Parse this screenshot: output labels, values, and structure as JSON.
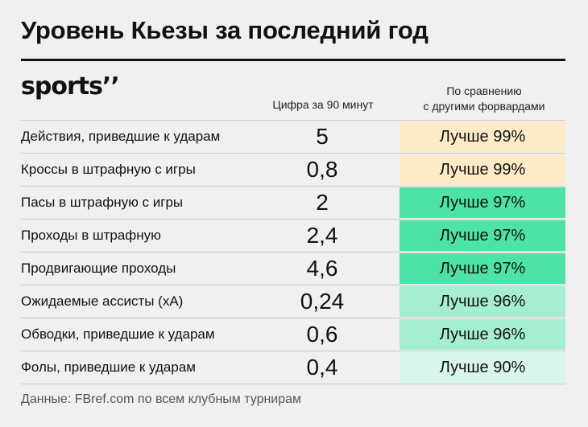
{
  "title": "Уровень Кьезы за последний год",
  "logo": "sports’’",
  "columns": {
    "value_header": "Цифра за 90 минут",
    "compare_header_line1": "По сравнению",
    "compare_header_line2": "с другими форвардами"
  },
  "colors": {
    "top": "#fdebc8",
    "green_strong": "#4ee3a6",
    "green_mid": "#a6eed2",
    "green_light": "#d8f7ea"
  },
  "rows": [
    {
      "label": "Действия, приведшие к ударам",
      "value": "5",
      "compare": "Лучше 99%",
      "color": "#fdebc8"
    },
    {
      "label": "Кроссы в штрафную с игры",
      "value": "0,8",
      "compare": "Лучше 99%",
      "color": "#fdebc8"
    },
    {
      "label": "Пасы в штрафную с игры",
      "value": "2",
      "compare": "Лучше 97%",
      "color": "#4ee3a6"
    },
    {
      "label": "Проходы в штрафную",
      "value": "2,4",
      "compare": "Лучше 97%",
      "color": "#4ee3a6"
    },
    {
      "label": "Продвигающие проходы",
      "value": "4,6",
      "compare": "Лучше 97%",
      "color": "#4ee3a6"
    },
    {
      "label": "Ожидаемые ассисты (xA)",
      "value": "0,24",
      "compare": "Лучше 96%",
      "color": "#a6eed2"
    },
    {
      "label": "Обводки, приведшие к ударам",
      "value": "0,6",
      "compare": "Лучше 96%",
      "color": "#a6eed2"
    },
    {
      "label": "Фолы, приведшие к ударам",
      "value": "0,4",
      "compare": "Лучше 90%",
      "color": "#d8f7ea"
    }
  ],
  "footer": "Данные: FBref.com по всем клубным турнирам"
}
